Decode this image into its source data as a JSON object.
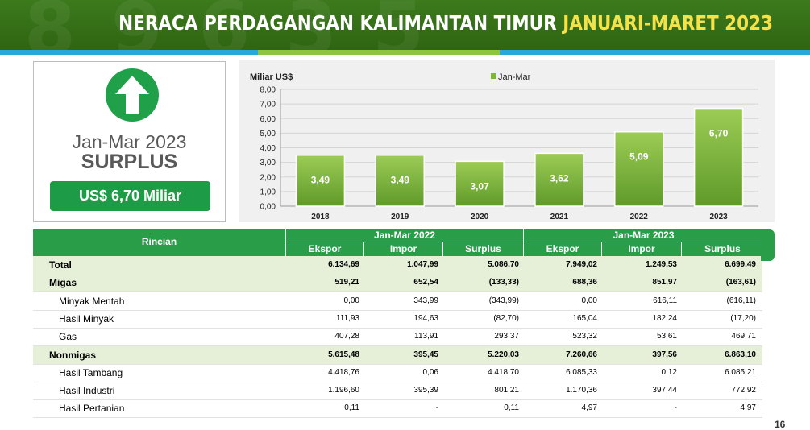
{
  "header": {
    "title_main": "NERACA PERDAGANGAN KALIMANTAN TIMUR",
    "title_highlight": "JANUARI-MARET 2023"
  },
  "summary": {
    "period": "Jan-Mar 2023",
    "status": "SURPLUS",
    "amount": "US$ 6,70 Miliar",
    "icon": "up-arrow-icon"
  },
  "chart_data": {
    "type": "bar",
    "ylabel": "Miliar US$",
    "legend": "Jan-Mar",
    "legend_position": "top",
    "categories": [
      "2018",
      "2019",
      "2020",
      "2021",
      "2022",
      "2023"
    ],
    "values": [
      3.49,
      3.49,
      3.07,
      3.62,
      5.09,
      6.7
    ],
    "value_labels": [
      "3,49",
      "3,49",
      "3,07",
      "3,62",
      "5,09",
      "6,70"
    ],
    "ylim": [
      0,
      8
    ],
    "yticks": [
      "0,00",
      "1,00",
      "2,00",
      "3,00",
      "4,00",
      "5,00",
      "6,00",
      "7,00",
      "8,00"
    ],
    "grid": true,
    "color": "#7fb53a"
  },
  "table": {
    "header_rincian": "Rincian",
    "group1": "Jan-Mar 2022",
    "group2": "Jan-Mar 2023",
    "cols": [
      "Ekspor",
      "Impor",
      "Surplus",
      "Ekspor",
      "Impor",
      "Surplus"
    ],
    "rows": [
      {
        "label": "Total",
        "type": "total",
        "values": [
          "6.134,69",
          "1.047,99",
          "5.086,70",
          "7.949,02",
          "1.249,53",
          "6.699,49"
        ]
      },
      {
        "label": "Migas",
        "type": "main",
        "values": [
          "519,21",
          "652,54",
          "(133,33)",
          "688,36",
          "851,97",
          "(163,61)"
        ]
      },
      {
        "label": "Minyak Mentah",
        "type": "sub",
        "values": [
          "0,00",
          "343,99",
          "(343,99)",
          "0,00",
          "616,11",
          "(616,11)"
        ]
      },
      {
        "label": "Hasil  Minyak",
        "type": "sub",
        "values": [
          "111,93",
          "194,63",
          "(82,70)",
          "165,04",
          "182,24",
          "(17,20)"
        ]
      },
      {
        "label": "Gas",
        "type": "sub",
        "values": [
          "407,28",
          "113,91",
          "293,37",
          "523,32",
          "53,61",
          "469,71"
        ]
      },
      {
        "label": "Nonmigas",
        "type": "main",
        "values": [
          "5.615,48",
          "395,45",
          "5.220,03",
          "7.260,66",
          "397,56",
          "6.863,10"
        ]
      },
      {
        "label": "Hasil Tambang",
        "type": "sub",
        "values": [
          "4.418,76",
          "0,06",
          "4.418,70",
          "6.085,33",
          "0,12",
          "6.085,21"
        ]
      },
      {
        "label": "Hasil Industri",
        "type": "sub",
        "values": [
          "1.196,60",
          "395,39",
          "801,21",
          "1.170,36",
          "397,44",
          "772,92"
        ]
      },
      {
        "label": "Hasil Pertanian",
        "type": "sub",
        "values": [
          "0,11",
          "-",
          "0,11",
          "4,97",
          "-",
          "4,97"
        ]
      }
    ]
  },
  "page_number": "16"
}
